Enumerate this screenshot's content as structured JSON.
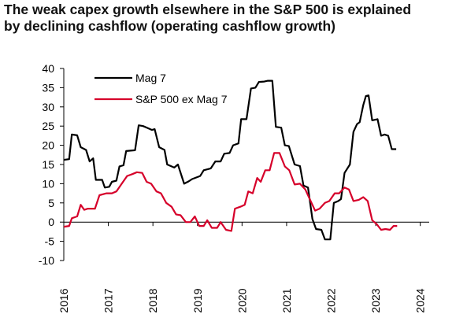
{
  "title_line1": "The weak capex growth elsewhere in the S&P 500 is explained",
  "title_line2": "by declining cashflow (operating cashflow growth)",
  "chart_data": {
    "type": "line",
    "ylim": [
      -10,
      40
    ],
    "yticks": [
      40,
      35,
      30,
      25,
      20,
      15,
      10,
      5,
      0,
      -5,
      -10
    ],
    "xlim": [
      2016,
      2024.2
    ],
    "xticks": [
      "2016",
      "2017",
      "2018",
      "2019",
      "2020",
      "2021",
      "2022",
      "2023",
      "2024"
    ],
    "legend_position": "top-center",
    "grid": false,
    "series": [
      {
        "name": "Mag 7",
        "color": "#000000",
        "points": [
          [
            2016.0,
            16.2
          ],
          [
            2016.12,
            16.4
          ],
          [
            2016.18,
            22.8
          ],
          [
            2016.3,
            22.6
          ],
          [
            2016.38,
            19.5
          ],
          [
            2016.5,
            18.8
          ],
          [
            2016.58,
            15.8
          ],
          [
            2016.66,
            16.6
          ],
          [
            2016.72,
            11.0
          ],
          [
            2016.86,
            11.0
          ],
          [
            2016.92,
            9.0
          ],
          [
            2017.02,
            9.2
          ],
          [
            2017.08,
            10.5
          ],
          [
            2017.18,
            10.8
          ],
          [
            2017.25,
            14.5
          ],
          [
            2017.34,
            14.8
          ],
          [
            2017.4,
            18.5
          ],
          [
            2017.6,
            18.7
          ],
          [
            2017.68,
            25.2
          ],
          [
            2017.78,
            25.0
          ],
          [
            2017.88,
            24.5
          ],
          [
            2017.98,
            24.0
          ],
          [
            2018.04,
            24.2
          ],
          [
            2018.14,
            19.5
          ],
          [
            2018.26,
            18.8
          ],
          [
            2018.32,
            15.0
          ],
          [
            2018.48,
            14.2
          ],
          [
            2018.56,
            15.0
          ],
          [
            2018.7,
            10.0
          ],
          [
            2018.8,
            10.6
          ],
          [
            2018.88,
            11.2
          ],
          [
            2019.06,
            12.0
          ],
          [
            2019.14,
            13.5
          ],
          [
            2019.3,
            14.0
          ],
          [
            2019.4,
            15.8
          ],
          [
            2019.52,
            15.8
          ],
          [
            2019.6,
            17.8
          ],
          [
            2019.72,
            18.0
          ],
          [
            2019.8,
            20.0
          ],
          [
            2019.92,
            20.5
          ],
          [
            2019.98,
            26.8
          ],
          [
            2020.1,
            26.8
          ],
          [
            2020.2,
            34.8
          ],
          [
            2020.3,
            35.0
          ],
          [
            2020.38,
            36.5
          ],
          [
            2020.5,
            36.6
          ],
          [
            2020.58,
            36.8
          ],
          [
            2020.68,
            36.8
          ],
          [
            2020.76,
            24.8
          ],
          [
            2020.88,
            24.6
          ],
          [
            2020.96,
            20.0
          ],
          [
            2021.05,
            19.8
          ],
          [
            2021.18,
            15.0
          ],
          [
            2021.3,
            14.6
          ],
          [
            2021.38,
            9.5
          ],
          [
            2021.48,
            9.0
          ],
          [
            2021.58,
            0.8
          ],
          [
            2021.66,
            -1.8
          ],
          [
            2021.78,
            -2.0
          ],
          [
            2021.86,
            -4.5
          ],
          [
            2021.98,
            -4.5
          ],
          [
            2022.06,
            5.0
          ],
          [
            2022.16,
            5.5
          ],
          [
            2022.22,
            6.0
          ],
          [
            2022.3,
            12.8
          ],
          [
            2022.42,
            15.0
          ],
          [
            2022.5,
            23.5
          ],
          [
            2022.58,
            25.5
          ],
          [
            2022.64,
            26.0
          ],
          [
            2022.72,
            30.5
          ],
          [
            2022.78,
            32.8
          ],
          [
            2022.84,
            33.0
          ],
          [
            2022.92,
            26.5
          ],
          [
            2023.04,
            26.8
          ],
          [
            2023.12,
            22.5
          ],
          [
            2023.2,
            22.8
          ],
          [
            2023.28,
            22.5
          ],
          [
            2023.36,
            19.0
          ],
          [
            2023.46,
            19.0
          ]
        ]
      },
      {
        "name": "S&P 500 ex Mag 7",
        "color": "#d6002a",
        "points": [
          [
            2016.0,
            -1.2
          ],
          [
            2016.12,
            -1.0
          ],
          [
            2016.18,
            1.0
          ],
          [
            2016.3,
            1.5
          ],
          [
            2016.38,
            4.5
          ],
          [
            2016.46,
            3.2
          ],
          [
            2016.54,
            3.5
          ],
          [
            2016.7,
            3.5
          ],
          [
            2016.8,
            7.0
          ],
          [
            2016.96,
            7.5
          ],
          [
            2017.08,
            7.5
          ],
          [
            2017.18,
            8.0
          ],
          [
            2017.3,
            10.0
          ],
          [
            2017.42,
            12.0
          ],
          [
            2017.54,
            12.5
          ],
          [
            2017.64,
            13.0
          ],
          [
            2017.76,
            12.8
          ],
          [
            2017.86,
            10.5
          ],
          [
            2017.96,
            10.0
          ],
          [
            2018.08,
            8.0
          ],
          [
            2018.18,
            7.5
          ],
          [
            2018.3,
            5.0
          ],
          [
            2018.42,
            4.0
          ],
          [
            2018.52,
            2.0
          ],
          [
            2018.62,
            1.8
          ],
          [
            2018.74,
            0.0
          ],
          [
            2018.84,
            0.0
          ],
          [
            2018.94,
            1.5
          ],
          [
            2019.04,
            -1.0
          ],
          [
            2019.14,
            -1.0
          ],
          [
            2019.22,
            0.5
          ],
          [
            2019.32,
            -1.5
          ],
          [
            2019.44,
            -1.5
          ],
          [
            2019.52,
            0.0
          ],
          [
            2019.64,
            -2.0
          ],
          [
            2019.76,
            -2.3
          ],
          [
            2019.84,
            3.5
          ],
          [
            2019.96,
            4.0
          ],
          [
            2020.06,
            4.5
          ],
          [
            2020.14,
            8.0
          ],
          [
            2020.24,
            7.5
          ],
          [
            2020.34,
            11.5
          ],
          [
            2020.42,
            10.5
          ],
          [
            2020.52,
            13.5
          ],
          [
            2020.62,
            13.5
          ],
          [
            2020.72,
            18.0
          ],
          [
            2020.84,
            18.0
          ],
          [
            2020.96,
            14.5
          ],
          [
            2021.06,
            13.5
          ],
          [
            2021.18,
            9.8
          ],
          [
            2021.3,
            10.0
          ],
          [
            2021.42,
            8.5
          ],
          [
            2021.5,
            6.5
          ],
          [
            2021.64,
            3.0
          ],
          [
            2021.74,
            3.5
          ],
          [
            2021.86,
            5.0
          ],
          [
            2021.96,
            5.5
          ],
          [
            2022.08,
            7.5
          ],
          [
            2022.18,
            7.5
          ],
          [
            2022.3,
            9.0
          ],
          [
            2022.4,
            8.5
          ],
          [
            2022.5,
            5.5
          ],
          [
            2022.62,
            5.8
          ],
          [
            2022.72,
            6.5
          ],
          [
            2022.82,
            5.5
          ],
          [
            2022.92,
            0.5
          ],
          [
            2023.02,
            -0.5
          ],
          [
            2023.12,
            -2.0
          ],
          [
            2023.22,
            -1.8
          ],
          [
            2023.32,
            -2.0
          ],
          [
            2023.4,
            -1.0
          ],
          [
            2023.48,
            -1.0
          ]
        ]
      }
    ]
  }
}
